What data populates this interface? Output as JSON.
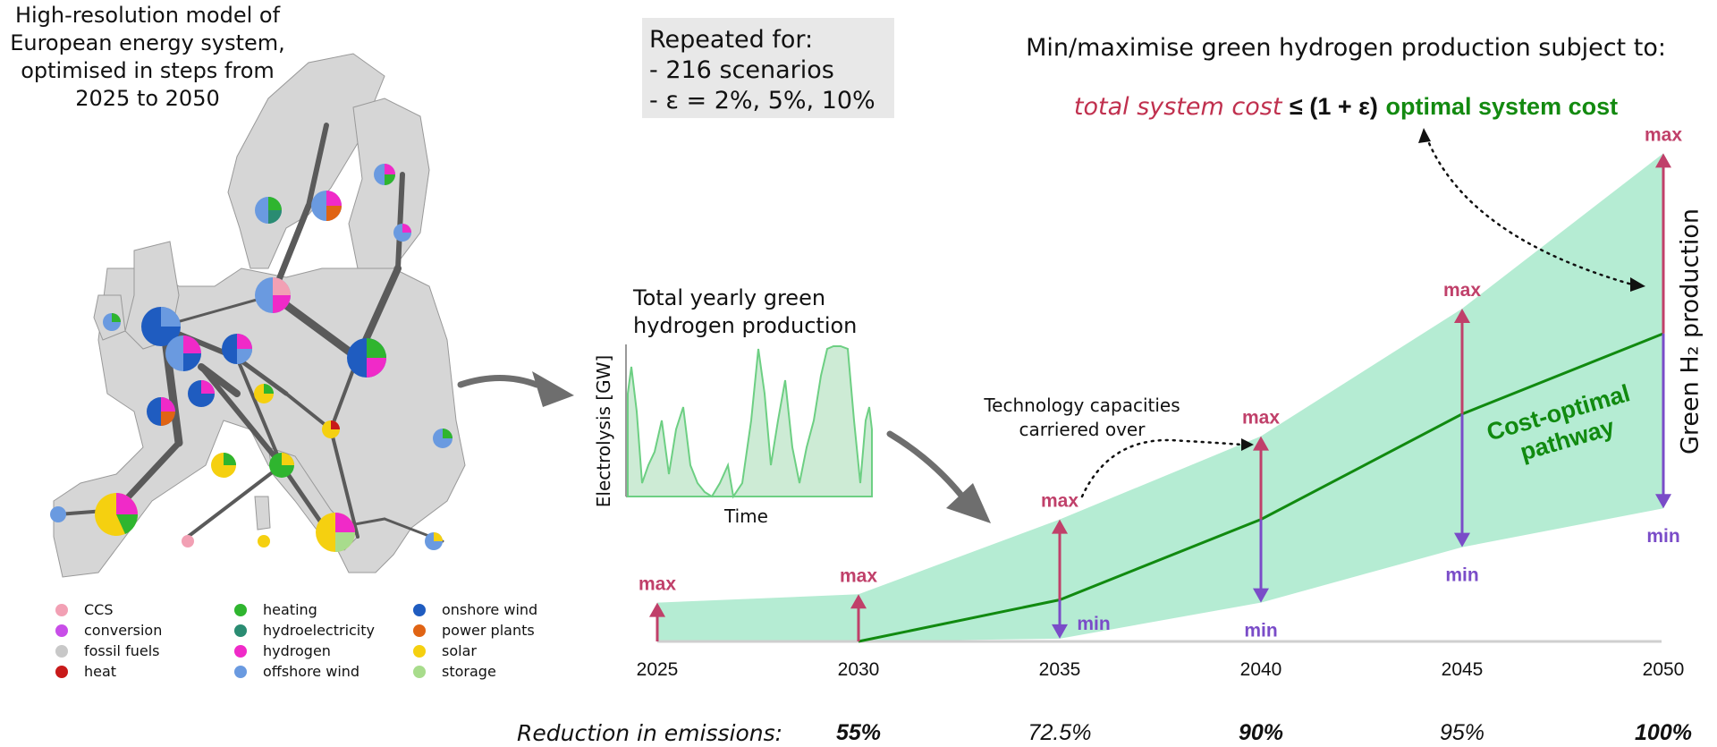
{
  "map": {
    "title_lines": [
      "High-resolution model of",
      "European energy system,",
      "optimised in steps from",
      "2025 to 2050"
    ],
    "legend": [
      {
        "label": "CCS",
        "color": "#f2a0b4"
      },
      {
        "label": "conversion",
        "color": "#c84ee8"
      },
      {
        "label": "fossil fuels",
        "color": "#c8c8c8"
      },
      {
        "label": "heat",
        "color": "#c81a1a"
      },
      {
        "label": "heating",
        "color": "#2fb52f"
      },
      {
        "label": "hydroelectricity",
        "color": "#2a8c72"
      },
      {
        "label": "hydrogen",
        "color": "#f02ac8"
      },
      {
        "label": "offshore wind",
        "color": "#6a9ae0"
      },
      {
        "label": "onshore wind",
        "color": "#1f5cc0"
      },
      {
        "label": "power plants",
        "color": "#e06414"
      },
      {
        "label": "solar",
        "color": "#f5d010"
      },
      {
        "label": "storage",
        "color": "#a8dc8c"
      }
    ]
  },
  "repeat": {
    "line1": "Repeated for:",
    "line2": "-  216 scenarios",
    "line3": "-  ε = 2%, 5%, 10%"
  },
  "objective": {
    "text": "Min/maximise green hydrogen production subject to:",
    "lhs": "total system cost",
    "op": "≤ (1 + ε)",
    "rhs": "optimal system cost"
  },
  "mini_chart": {
    "title_lines": [
      "Total yearly green",
      "hydrogen production"
    ],
    "ylabel": "Electrolysis [GW]",
    "xlabel": "Time"
  },
  "carried": {
    "line1": "Technology capacities",
    "line2": "carriered over"
  },
  "ylabel_right": "Green H₂ production",
  "pathway_label": {
    "line1": "Cost-optimal",
    "line2": "pathway"
  },
  "labels": {
    "max": "max",
    "min": "min"
  },
  "colors": {
    "band": "#b5ecd3",
    "optimal": "#118a10",
    "max_arrow": "#c0406a",
    "min_arrow": "#7a4cc8"
  },
  "chart_data": {
    "type": "area",
    "x": [
      2025,
      2030,
      2035,
      2040,
      2045,
      2050
    ],
    "x_tick_labels": [
      "2025",
      "2030",
      "2035",
      "2040",
      "2045",
      "2050"
    ],
    "series": [
      {
        "values_max": [
          0.7,
          0.85,
          2.2,
          3.7,
          6.0,
          8.8
        ]
      },
      {
        "values_min": [
          0.0,
          0.0,
          0.05,
          0.7,
          1.7,
          2.4
        ]
      },
      {
        "name": "Cost-optimal pathway",
        "values": [
          null,
          0.0,
          0.75,
          2.2,
          4.1,
          5.55
        ]
      }
    ],
    "emission_reductions": [
      {
        "year": "2025",
        "label": ""
      },
      {
        "year": "2030",
        "label": "55%",
        "bold": true
      },
      {
        "year": "2035",
        "label": "72.5%",
        "bold": false
      },
      {
        "year": "2040",
        "label": "90%",
        "bold": true
      },
      {
        "year": "2045",
        "label": "95%",
        "bold": false
      },
      {
        "year": "2050",
        "label": "100%",
        "bold": true
      }
    ],
    "reduction_label": "Reduction in emissions:"
  }
}
